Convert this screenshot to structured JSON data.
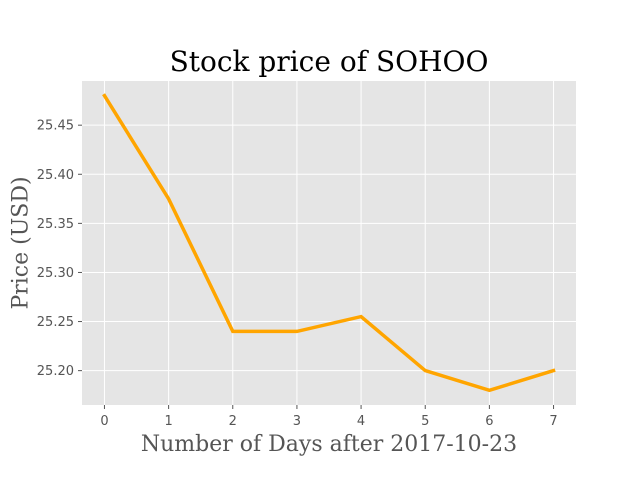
{
  "chart_data": {
    "type": "line",
    "title": "Stock price of SOHOO",
    "xlabel": "Number of Days after 2017-10-23",
    "ylabel": "Price (USD)",
    "x": [
      0,
      1,
      2,
      3,
      4,
      5,
      6,
      7
    ],
    "series": [
      {
        "values": [
          25.48,
          25.375,
          25.24,
          25.24,
          25.255,
          25.2,
          25.18,
          25.2
        ]
      }
    ],
    "xticks": [
      "0",
      "1",
      "2",
      "3",
      "4",
      "5",
      "6",
      "7"
    ],
    "yticks": [
      "25.20",
      "25.25",
      "25.30",
      "25.35",
      "25.40",
      "25.45"
    ],
    "xlim": [
      -0.35,
      7.35
    ],
    "ylim": [
      25.165,
      25.495
    ],
    "grid": true,
    "colors": {
      "line": "#ffa500",
      "plot_background": "#e5e5e5",
      "grid": "#ffffff"
    }
  }
}
